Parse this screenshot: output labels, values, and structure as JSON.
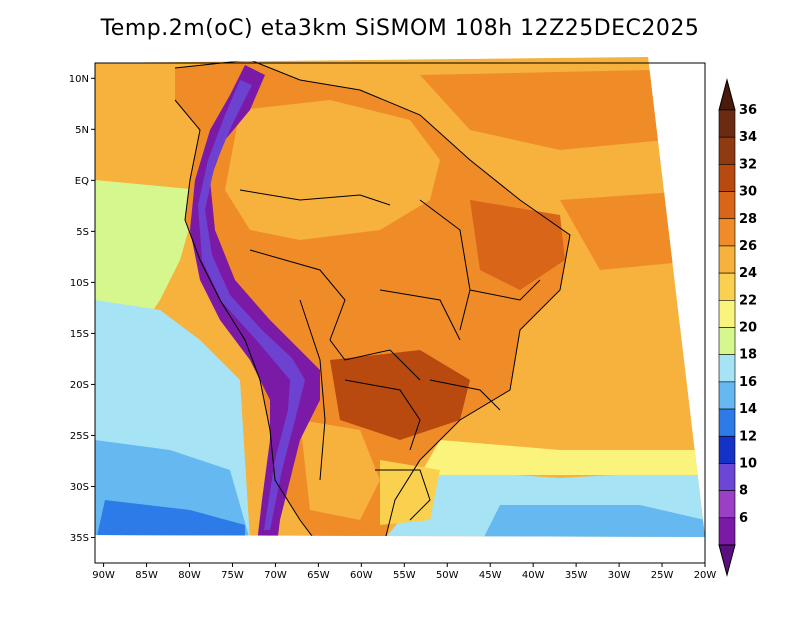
{
  "title": "Temp.2m(oC) eta3km SiSMOM 108h 12Z25DEC2025",
  "map": {
    "lat_labels": [
      "10N",
      "5N",
      "EQ",
      "5S",
      "10S",
      "15S",
      "20S",
      "25S",
      "30S",
      "35S"
    ],
    "lon_labels": [
      "90W",
      "85W",
      "80W",
      "75W",
      "70W",
      "65W",
      "60W",
      "55W",
      "50W",
      "45W",
      "40W",
      "35W",
      "30W",
      "25W",
      "20W"
    ],
    "lat_values": [
      10,
      5,
      0,
      -5,
      -10,
      -15,
      -20,
      -25,
      -30,
      -35
    ],
    "lon_values": [
      -90,
      -85,
      -80,
      -75,
      -70,
      -65,
      -60,
      -55,
      -50,
      -45,
      -40,
      -35,
      -30,
      -25,
      -20
    ],
    "lat_range": [
      -37.5,
      11.5
    ],
    "lon_range": [
      -91,
      -20
    ]
  },
  "colorbar": {
    "labels": [
      "36",
      "34",
      "32",
      "30",
      "28",
      "26",
      "24",
      "22",
      "20",
      "18",
      "16",
      "14",
      "12",
      "10",
      "8",
      "6"
    ],
    "colors": [
      "#6b2a12",
      "#8e3b12",
      "#b84a10",
      "#d86518",
      "#f08c28",
      "#f7b13d",
      "#fad14e",
      "#fbf47c",
      "#d6f78e",
      "#a6e3f5",
      "#66b9f0",
      "#2d7be8",
      "#1431c8",
      "#6c47d6",
      "#9b3fc6",
      "#7a1aa6"
    ]
  }
}
